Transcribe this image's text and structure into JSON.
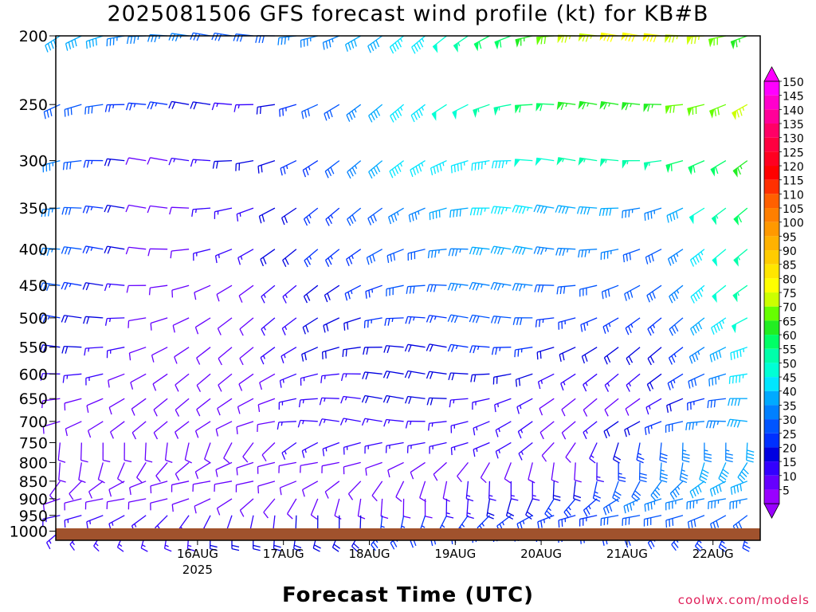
{
  "title": "2025081506 GFS forecast wind profile (kt) for KB#B",
  "credit": "coolwx.com/models",
  "chart_data": {
    "type": "wind-barb-time-height",
    "title": "2025081506 GFS forecast wind profile (kt) for KB#B",
    "xlabel": "Forecast Time (UTC)",
    "ylabel": "",
    "x_ticks": [
      {
        "label": "16AUG",
        "sub": "2025",
        "day": 1
      },
      {
        "label": "17AUG",
        "sub": "",
        "day": 2
      },
      {
        "label": "18AUG",
        "sub": "",
        "day": 3
      },
      {
        "label": "19AUG",
        "sub": "",
        "day": 4
      },
      {
        "label": "20AUG",
        "sub": "",
        "day": 5
      },
      {
        "label": "21AUG",
        "sub": "",
        "day": 6
      },
      {
        "label": "22AUG",
        "sub": "",
        "day": 7
      }
    ],
    "xlim_days": [
      -0.65,
      7.55
    ],
    "y_axis": "pressure (log scale)",
    "y_ticks": [
      200,
      250,
      300,
      350,
      400,
      450,
      500,
      550,
      600,
      650,
      700,
      750,
      800,
      850,
      900,
      950,
      1000
    ],
    "ylim_hpa": [
      200,
      1030
    ],
    "terrain": "surface (brown band) near 1020 hPa",
    "colorbar": {
      "units": "kt",
      "labels": [
        150,
        145,
        140,
        135,
        130,
        125,
        120,
        115,
        110,
        105,
        100,
        95,
        90,
        85,
        80,
        75,
        70,
        65,
        60,
        55,
        50,
        45,
        40,
        35,
        30,
        25,
        20,
        15,
        10,
        5
      ],
      "colors": [
        "#ff00ff",
        "#ff00cc",
        "#ff0099",
        "#ff0066",
        "#ff0040",
        "#ff0020",
        "#ff0000",
        "#ff3000",
        "#ff6000",
        "#ff7f00",
        "#ff9900",
        "#ffb200",
        "#ffcc00",
        "#ffe600",
        "#ffff00",
        "#ccff00",
        "#66ff00",
        "#22ee22",
        "#00ff66",
        "#00ffaa",
        "#00ffd5",
        "#00e6ff",
        "#00aaff",
        "#0080ff",
        "#0055ff",
        "#0030ff",
        "#0000e0",
        "#3300ff",
        "#6600ff",
        "#9900ff"
      ]
    },
    "wind_speed_kt_by_level": {
      "levels_hpa": [
        200,
        250,
        300,
        350,
        400,
        450,
        500,
        550,
        600,
        650,
        700,
        750,
        800,
        850,
        900,
        950,
        1000
      ],
      "day_nodes": [
        -0.6,
        0.5,
        1.5,
        2.5,
        3.5,
        4.5,
        5.5,
        6.3,
        7.5
      ],
      "speed": [
        [
          40,
          35,
          30,
          35,
          45,
          60,
          75,
          80,
          65
        ],
        [
          30,
          25,
          15,
          30,
          45,
          55,
          65,
          65,
          75
        ],
        [
          35,
          10,
          20,
          25,
          45,
          45,
          55,
          55,
          65
        ],
        [
          35,
          10,
          15,
          25,
          35,
          45,
          40,
          35,
          60
        ],
        [
          35,
          10,
          15,
          25,
          30,
          40,
          35,
          30,
          55
        ],
        [
          30,
          10,
          10,
          20,
          30,
          35,
          30,
          30,
          55
        ],
        [
          25,
          10,
          10,
          20,
          25,
          30,
          25,
          25,
          50
        ],
        [
          20,
          10,
          10,
          20,
          20,
          25,
          20,
          20,
          45
        ],
        [
          15,
          10,
          10,
          15,
          20,
          20,
          15,
          15,
          45
        ],
        [
          10,
          10,
          10,
          15,
          20,
          15,
          10,
          10,
          40
        ],
        [
          10,
          10,
          10,
          15,
          15,
          15,
          10,
          25,
          40
        ],
        [
          10,
          10,
          10,
          15,
          15,
          15,
          10,
          30,
          40
        ],
        [
          10,
          10,
          10,
          10,
          10,
          10,
          10,
          35,
          40
        ],
        [
          10,
          10,
          10,
          10,
          10,
          15,
          20,
          35,
          40
        ],
        [
          10,
          10,
          10,
          10,
          10,
          20,
          25,
          35,
          35
        ],
        [
          15,
          15,
          15,
          20,
          25,
          25,
          25,
          30,
          30
        ],
        [
          15,
          15,
          20,
          20,
          25,
          25,
          25,
          25,
          25
        ]
      ]
    },
    "barb_time_step_hours": 6
  }
}
